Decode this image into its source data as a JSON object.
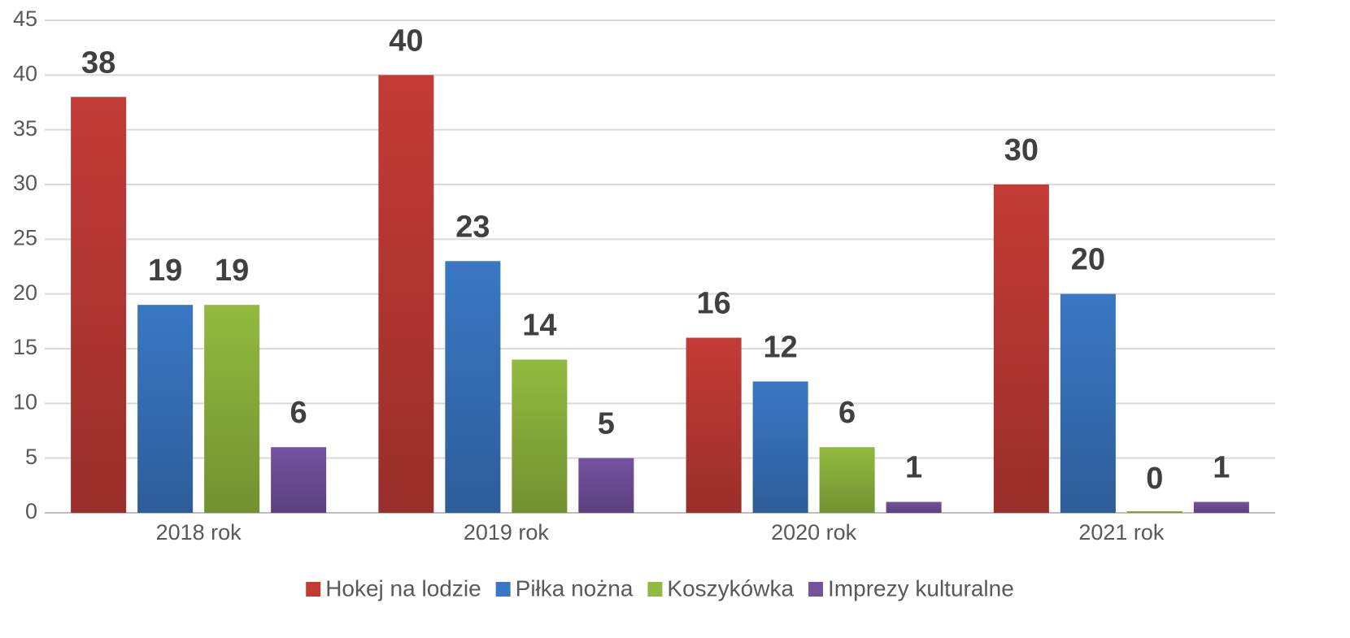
{
  "chart_data": {
    "type": "bar",
    "categories": [
      "2018 rok",
      "2019 rok",
      "2020 rok",
      "2021 rok"
    ],
    "series": [
      {
        "name": "Hokej na lodzie",
        "color": "#c43b36",
        "values": [
          38,
          40,
          16,
          30
        ]
      },
      {
        "name": "Piłka nożna",
        "color": "#3a77c4",
        "values": [
          19,
          23,
          12,
          20
        ]
      },
      {
        "name": "Koszykówka",
        "color": "#92ba3f",
        "values": [
          19,
          14,
          6,
          0
        ]
      },
      {
        "name": "Imprezy kulturalne",
        "color": "#7452a0",
        "values": [
          6,
          5,
          1,
          1
        ]
      }
    ],
    "ylim": [
      0,
      45
    ],
    "yticks": [
      0,
      5,
      10,
      15,
      20,
      25,
      30,
      35,
      40,
      45
    ],
    "grid": true,
    "legend": "bottom"
  }
}
